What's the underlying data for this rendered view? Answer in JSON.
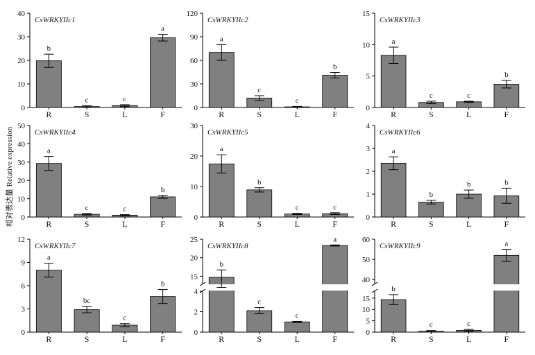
{
  "figure": {
    "ylabel": "相对表达量 Relative expression",
    "bar_color": "#808080",
    "axis_color": "#000000"
  },
  "chart_data": [
    {
      "type": "bar",
      "title": "CsWRKYIIc1",
      "categories": [
        "R",
        "S",
        "L",
        "F"
      ],
      "values": [
        19.8,
        0.4,
        0.8,
        29.6
      ],
      "errors": [
        2.8,
        0.3,
        0.4,
        1.4
      ],
      "letters": [
        "b",
        "c",
        "c",
        "a"
      ],
      "ylim": [
        0,
        40
      ],
      "yticks": [
        0,
        10,
        20,
        30,
        40
      ]
    },
    {
      "type": "bar",
      "title": "CsWRKYIIc2",
      "categories": [
        "R",
        "S",
        "L",
        "F"
      ],
      "values": [
        70,
        12,
        0.8,
        41
      ],
      "errors": [
        10,
        3,
        0.6,
        3.5
      ],
      "letters": [
        "a",
        "c",
        "c",
        "b"
      ],
      "ylim": [
        0,
        120
      ],
      "yticks": [
        0,
        30,
        60,
        90,
        120
      ]
    },
    {
      "type": "bar",
      "title": "CsWRKYIIc3",
      "categories": [
        "R",
        "S",
        "L",
        "F"
      ],
      "values": [
        8.3,
        0.8,
        0.9,
        3.7
      ],
      "errors": [
        1.3,
        0.2,
        0.1,
        0.6
      ],
      "letters": [
        "a",
        "c",
        "c",
        "b"
      ],
      "ylim": [
        0,
        15
      ],
      "yticks": [
        0,
        5,
        10,
        15
      ]
    },
    {
      "type": "bar",
      "title": "CsWRKYIIc4",
      "categories": [
        "R",
        "S",
        "L",
        "F"
      ],
      "values": [
        29.3,
        1.5,
        1.0,
        11.0
      ],
      "errors": [
        3.8,
        0.4,
        0.3,
        0.8
      ],
      "letters": [
        "a",
        "c",
        "c",
        "b"
      ],
      "ylim": [
        0,
        50
      ],
      "yticks": [
        0,
        10,
        20,
        30,
        40,
        50
      ]
    },
    {
      "type": "bar",
      "title": "CsWRKYIIc5",
      "categories": [
        "R",
        "S",
        "L",
        "F"
      ],
      "values": [
        17.4,
        8.9,
        1.0,
        1.1
      ],
      "errors": [
        3.0,
        0.7,
        0.2,
        0.3
      ],
      "letters": [
        "a",
        "b",
        "c",
        "c"
      ],
      "ylim": [
        0,
        30
      ],
      "yticks": [
        0,
        10,
        20,
        30
      ]
    },
    {
      "type": "bar",
      "title": "CsWRKYIIc6",
      "categories": [
        "R",
        "S",
        "L",
        "F"
      ],
      "values": [
        2.35,
        0.65,
        1.0,
        0.93
      ],
      "errors": [
        0.28,
        0.08,
        0.18,
        0.33
      ],
      "letters": [
        "a",
        "b",
        "b",
        "b"
      ],
      "ylim": [
        0,
        4
      ],
      "yticks": [
        0,
        1,
        2,
        3,
        4
      ]
    },
    {
      "type": "bar",
      "title": "CsWRKYIIc7",
      "categories": [
        "R",
        "S",
        "L",
        "F"
      ],
      "values": [
        8.0,
        2.9,
        0.9,
        4.6
      ],
      "errors": [
        0.9,
        0.4,
        0.2,
        0.9
      ],
      "letters": [
        "a",
        "bc",
        "c",
        "b"
      ],
      "ylim": [
        0,
        12
      ],
      "yticks": [
        0,
        3,
        6,
        9,
        12
      ]
    },
    {
      "type": "bar",
      "title": "CsWRKYIIc8",
      "categories": [
        "R",
        "S",
        "L",
        "F"
      ],
      "values": [
        14.7,
        2.1,
        1.0,
        23.3
      ],
      "errors": [
        2.0,
        0.3,
        0.05,
        0.15
      ],
      "letters": [
        "b",
        "c",
        "c",
        "a"
      ],
      "ylim": [
        0,
        25
      ],
      "yticks": [
        0,
        2,
        4,
        15,
        20,
        25
      ],
      "broken_axis": [
        4,
        13
      ]
    },
    {
      "type": "bar",
      "title": "CsWRKYIIc9",
      "categories": [
        "R",
        "S",
        "L",
        "F"
      ],
      "values": [
        14.3,
        0.4,
        0.8,
        52
      ],
      "errors": [
        2.2,
        0.3,
        0.4,
        3
      ],
      "letters": [
        "b",
        "c",
        "c",
        "a"
      ],
      "ylim": [
        0,
        60
      ],
      "yticks": [
        0,
        5,
        10,
        15,
        40,
        50,
        60
      ],
      "broken_axis": [
        18,
        38
      ]
    }
  ]
}
